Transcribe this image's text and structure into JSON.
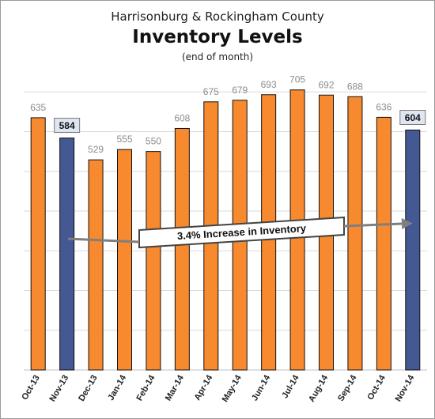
{
  "chart_data": {
    "type": "bar",
    "title": "Harrisonburg & Rockingham County",
    "subtitle": "Inventory Levels",
    "note": "(end of month)",
    "categories": [
      "Oct-13",
      "Nov-13",
      "Dec-13",
      "Jan-14",
      "Feb-14",
      "Mar-14",
      "Apr-14",
      "May-14",
      "Jun-14",
      "Jul-14",
      "Aug-14",
      "Sep-14",
      "Oct-14",
      "Nov-14"
    ],
    "values": [
      635,
      584,
      529,
      555,
      550,
      608,
      675,
      679,
      693,
      705,
      692,
      688,
      636,
      604
    ],
    "highlighted": [
      "Nov-13",
      "Nov-14"
    ],
    "ylim": [
      0,
      800
    ],
    "grid": true,
    "annotation": "3.4% Increase in Inventory",
    "colors": {
      "bar": "#f7892f",
      "highlight": "#445893",
      "bar_edge": "#111111",
      "grid": "#d9d9d9",
      "label": "#8c8c8c",
      "arrow": "#7f7f7f"
    }
  }
}
